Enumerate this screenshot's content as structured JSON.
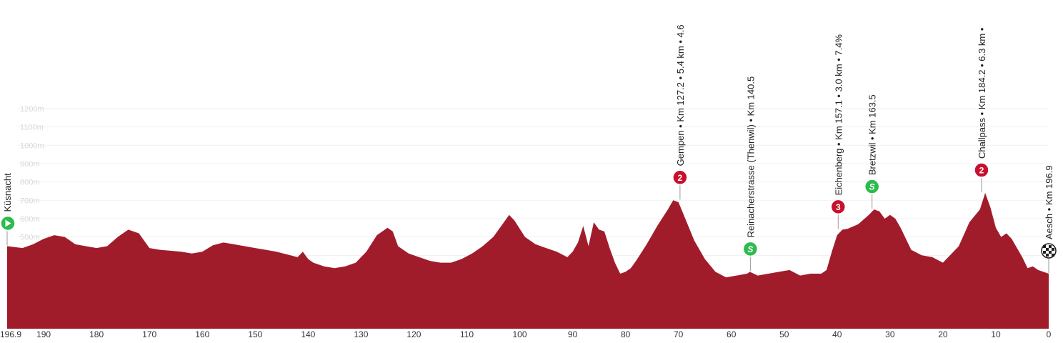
{
  "chart_data": {
    "type": "area",
    "xlabel": "",
    "ylabel": "",
    "x_reversed": true,
    "xlim": [
      196.9,
      0
    ],
    "ylim": [
      0,
      1200
    ],
    "x_ticks": [
      "196.9",
      "190",
      "180",
      "170",
      "160",
      "150",
      "140",
      "130",
      "120",
      "110",
      "100",
      "90",
      "80",
      "70",
      "60",
      "50",
      "40",
      "30",
      "20",
      "10",
      "0"
    ],
    "y_ticks": [
      "100m",
      "200m",
      "300m",
      "400m",
      "500m",
      "600m",
      "700m",
      "800m",
      "900m",
      "1000m",
      "1100m",
      "1200m"
    ],
    "colors": {
      "fill": "#a11c2b",
      "category": "#c8102e",
      "sprint": "#2dbb4e",
      "start": "#2dbb4e"
    },
    "series": [
      {
        "x": [
          196.9,
          194,
          192,
          190,
          188,
          186,
          184,
          182,
          180,
          178,
          176,
          174,
          172,
          170,
          168,
          166,
          164,
          162,
          160,
          158,
          156,
          154,
          152,
          150,
          148,
          146,
          144,
          142,
          141,
          140,
          139,
          137,
          135,
          133,
          131,
          129,
          127,
          125,
          124,
          123,
          121,
          119,
          117,
          115,
          113,
          111,
          109,
          107,
          105,
          103,
          102,
          101,
          99,
          97,
          95,
          93,
          91,
          90,
          89,
          88,
          87,
          86,
          85.5,
          85,
          84,
          83,
          82,
          81,
          80,
          79,
          78,
          76,
          74,
          72,
          71,
          70,
          69,
          67,
          65,
          63,
          61,
          59,
          57,
          56.5,
          55,
          53,
          51,
          49,
          47,
          45,
          43,
          42,
          41,
          40,
          39,
          38,
          36,
          34,
          33,
          32,
          31,
          30,
          29,
          28,
          26,
          24,
          22,
          20,
          18,
          17,
          15,
          13,
          12,
          11,
          10,
          9,
          8,
          7,
          6,
          5,
          4,
          3,
          2,
          1,
          0
        ],
        "values": [
          450,
          440,
          460,
          490,
          510,
          500,
          460,
          450,
          440,
          450,
          500,
          540,
          520,
          440,
          430,
          425,
          420,
          410,
          420,
          455,
          470,
          460,
          450,
          440,
          430,
          420,
          405,
          390,
          420,
          380,
          360,
          340,
          330,
          340,
          360,
          420,
          510,
          550,
          530,
          450,
          410,
          390,
          370,
          360,
          360,
          380,
          410,
          450,
          500,
          580,
          620,
          590,
          500,
          460,
          440,
          420,
          390,
          420,
          470,
          560,
          450,
          580,
          560,
          540,
          530,
          440,
          360,
          300,
          310,
          330,
          370,
          460,
          560,
          650,
          700,
          690,
          620,
          480,
          380,
          310,
          280,
          290,
          300,
          310,
          290,
          300,
          310,
          320,
          290,
          300,
          300,
          320,
          420,
          510,
          540,
          545,
          570,
          620,
          650,
          640,
          600,
          620,
          600,
          550,
          430,
          400,
          390,
          360,
          420,
          450,
          580,
          650,
          740,
          660,
          550,
          500,
          520,
          490,
          440,
          390,
          330,
          340,
          320,
          310,
          300
        ]
      }
    ],
    "waypoints": [
      {
        "km": 196.9,
        "elev": 450,
        "kind": "start",
        "badge": "",
        "label": "Küsnacht"
      },
      {
        "km": 69.7,
        "elev": 700,
        "kind": "category",
        "badge": "2",
        "label": "Gempen • Km 127.2 • 5.4 km • 4.6"
      },
      {
        "km": 56.4,
        "elev": 310,
        "kind": "sprint",
        "badge": "S",
        "label": "Reinacherstrasse (Thenwil) • Km 140.5"
      },
      {
        "km": 39.8,
        "elev": 540,
        "kind": "category",
        "badge": "3",
        "label": "Eichenberg • Km 157.1 • 3.0 km • 7.4%"
      },
      {
        "km": 33.4,
        "elev": 650,
        "kind": "sprint",
        "badge": "S",
        "label": "Bretzwil • Km 163.5"
      },
      {
        "km": 12.7,
        "elev": 740,
        "kind": "category",
        "badge": "2",
        "label": "Challpass • Km 184.2 • 6.3 km •"
      },
      {
        "km": 0,
        "elev": 300,
        "kind": "finish",
        "badge": "",
        "label": "Aesch • Km 196.9"
      }
    ]
  }
}
